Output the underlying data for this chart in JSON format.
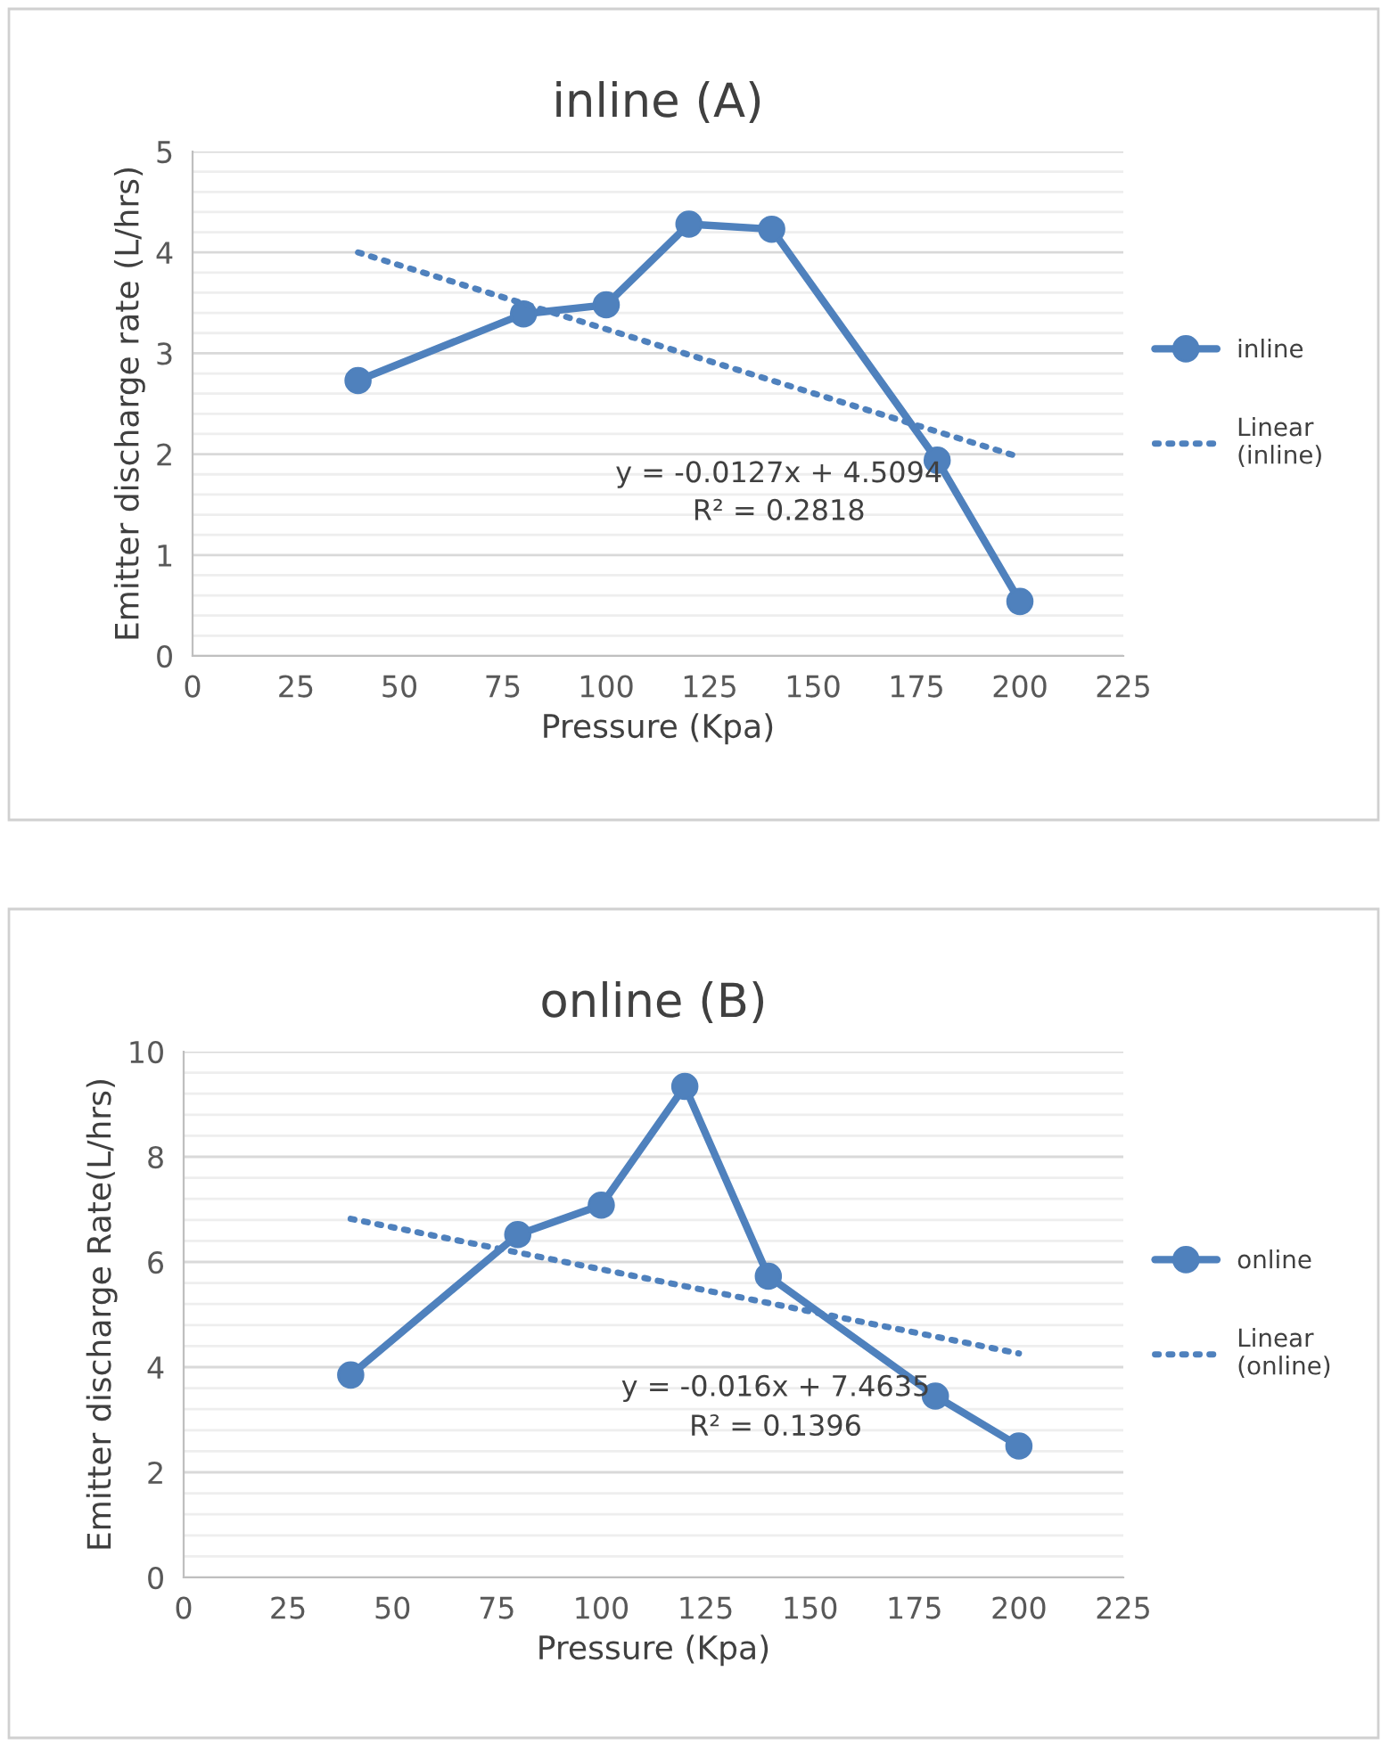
{
  "chart_data": [
    {
      "type": "line",
      "title": "inline (A)",
      "xlabel": "Pressure (Kpa)",
      "ylabel": "Emitter discharge rate (L/hrs)",
      "xlim": [
        0,
        225
      ],
      "xticks": [
        0,
        25,
        50,
        75,
        100,
        125,
        150,
        175,
        200,
        225
      ],
      "ylim": [
        0,
        5
      ],
      "yticks": [
        0,
        {
          "value": 0.2,
          "label": null
        },
        {
          "value": 0.4,
          "label": null
        },
        {
          "value": 0.6,
          "label": null
        },
        {
          "value": 0.8,
          "label": null
        },
        1,
        {
          "value": 1.2,
          "label": null
        },
        {
          "value": 1.4,
          "label": null
        },
        {
          "value": 1.6,
          "label": null
        },
        {
          "value": 1.8,
          "label": null
        },
        2,
        {
          "value": 2.2,
          "label": null
        },
        {
          "value": 2.4,
          "label": null
        },
        {
          "value": 2.6,
          "label": null
        },
        {
          "value": 2.8,
          "label": null
        },
        3,
        {
          "value": 3.2,
          "label": null
        },
        {
          "value": 3.4,
          "label": null
        },
        {
          "value": 3.6,
          "label": null
        },
        {
          "value": 3.8,
          "label": null
        },
        4,
        {
          "value": 4.2,
          "label": null
        },
        {
          "value": 4.4,
          "label": null
        },
        {
          "value": 4.6,
          "label": null
        },
        {
          "value": 4.8,
          "label": null
        },
        5
      ],
      "grid": "y",
      "legend": "right",
      "series": [
        {
          "name": "inline",
          "color": "#4f81bd",
          "marker": "circle",
          "line_style": "solid",
          "x": [
            40,
            80,
            100,
            120,
            140,
            180,
            200
          ],
          "values": [
            2.73,
            3.39,
            3.48,
            4.28,
            4.23,
            1.94,
            0.54
          ]
        },
        {
          "name": "Linear (inline)",
          "color": "#4f81bd",
          "marker": "none",
          "line_style": "dotted",
          "x": [
            40,
            200
          ],
          "values": [
            4.0,
            1.97
          ]
        }
      ],
      "annotations": [
        "y = -0.0127x + 4.5094",
        "R² = 0.2818"
      ]
    },
    {
      "type": "line",
      "title": "online (B)",
      "xlabel": "Pressure (Kpa)",
      "ylabel": "Emitter discharge Rate(L/hrs)",
      "xlim": [
        0,
        225
      ],
      "xticks": [
        0,
        25,
        50,
        75,
        100,
        125,
        150,
        175,
        200,
        225
      ],
      "ylim": [
        0,
        10
      ],
      "yticks": [
        0,
        {
          "value": 0.4,
          "label": null
        },
        {
          "value": 0.8,
          "label": null
        },
        {
          "value": 1.2,
          "label": null
        },
        {
          "value": 1.6,
          "label": null
        },
        2,
        {
          "value": 2.4,
          "label": null
        },
        {
          "value": 2.8,
          "label": null
        },
        {
          "value": 3.2,
          "label": null
        },
        {
          "value": 3.6,
          "label": null
        },
        4,
        {
          "value": 4.4,
          "label": null
        },
        {
          "value": 4.8,
          "label": null
        },
        {
          "value": 5.2,
          "label": null
        },
        {
          "value": 5.6,
          "label": null
        },
        6,
        {
          "value": 6.4,
          "label": null
        },
        {
          "value": 6.8,
          "label": null
        },
        {
          "value": 7.2,
          "label": null
        },
        {
          "value": 7.6,
          "label": null
        },
        8,
        {
          "value": 8.4,
          "label": null
        },
        {
          "value": 8.8,
          "label": null
        },
        {
          "value": 9.2,
          "label": null
        },
        {
          "value": 9.6,
          "label": null
        },
        10
      ],
      "grid": "y",
      "legend": "right",
      "series": [
        {
          "name": "online",
          "color": "#4f81bd",
          "marker": "circle",
          "line_style": "solid",
          "x": [
            40,
            80,
            100,
            120,
            140,
            180,
            200
          ],
          "values": [
            3.85,
            6.52,
            7.08,
            9.34,
            5.73,
            3.45,
            2.5
          ]
        },
        {
          "name": "Linear (online)",
          "color": "#4f81bd",
          "marker": "none",
          "line_style": "dotted",
          "x": [
            40,
            200
          ],
          "values": [
            6.82,
            4.26
          ]
        }
      ],
      "annotations": [
        "y = -0.016x + 7.4635",
        "R² = 0.1396"
      ]
    }
  ]
}
